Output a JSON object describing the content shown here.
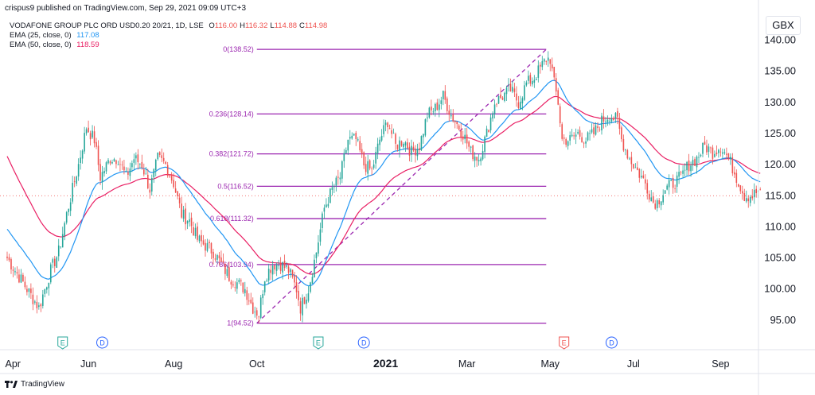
{
  "header": {
    "attribution": "crispus9 published on TradingView.com, Sep 29, 2021 09:09 UTC+3"
  },
  "legend": {
    "symbol": "VODAFONE GROUP PLC ORD USD0.20 20/21, 1D, LSE",
    "ohlc": [
      {
        "label": "O",
        "value": "116.00"
      },
      {
        "label": "H",
        "value": "116.32"
      },
      {
        "label": "L",
        "value": "114.88"
      },
      {
        "label": "C",
        "value": "114.98"
      }
    ],
    "ema25_label": "EMA (25, close, 0)",
    "ema25_value": "117.08",
    "ema50_label": "EMA (50, close, 0)",
    "ema50_value": "118.59"
  },
  "currency": "GBX",
  "footer": {
    "brand": "TradingView"
  },
  "colors": {
    "up": "#26a69a",
    "down": "#ef5350",
    "ema25": "#2196f3",
    "ema50": "#e91e63",
    "fib": "#9c27b0",
    "events_earnings": "#26a69a",
    "events_dividend": "#2962ff",
    "events_red": "#ef5350"
  },
  "chart_data": {
    "type": "candlestick",
    "ylim": [
      90,
      142
    ],
    "y_ticks": [
      "95.00",
      "100.00",
      "105.00",
      "110.00",
      "115.00",
      "120.00",
      "125.00",
      "130.00",
      "135.00",
      "140.00"
    ],
    "x_ticks": [
      {
        "label": "Apr",
        "d": -1
      },
      {
        "label": "Jun",
        "d": 41
      },
      {
        "label": "Aug",
        "d": 84
      },
      {
        "label": "Oct",
        "d": 126
      },
      {
        "label": "2021",
        "d": 191
      },
      {
        "label": "Mar",
        "d": 232
      },
      {
        "label": "May",
        "d": 274
      },
      {
        "label": "Jul",
        "d": 316
      },
      {
        "label": "Sep",
        "d": 360
      }
    ],
    "last_price": 114.98,
    "fibonacci": {
      "start_d": 126,
      "end_d": 272,
      "levels": [
        {
          "label": "0(138.52)",
          "price": 138.52
        },
        {
          "label": "0.236(128.14)",
          "price": 128.14
        },
        {
          "label": "0.382(121.72)",
          "price": 121.72
        },
        {
          "label": "0.5(116.52)",
          "price": 116.52
        },
        {
          "label": "0.618(111.32)",
          "price": 111.32
        },
        {
          "label": "0.786(103.94)",
          "price": 103.94
        },
        {
          "label": "1(94.52)",
          "price": 94.52
        }
      ],
      "trend_from": {
        "d": 126,
        "price": 94.52
      },
      "trend_to": {
        "d": 272,
        "price": 138.52
      }
    },
    "events": [
      {
        "type": "E",
        "d": 28,
        "color": "earnings"
      },
      {
        "type": "D",
        "d": 48,
        "color": "dividend"
      },
      {
        "type": "E",
        "d": 157,
        "color": "earnings"
      },
      {
        "type": "D",
        "d": 180,
        "color": "dividend"
      },
      {
        "type": "E",
        "d": 281,
        "color": "red"
      },
      {
        "type": "D",
        "d": 305,
        "color": "dividend"
      }
    ],
    "close_anchors": [
      [
        0,
        105
      ],
      [
        6,
        102
      ],
      [
        12,
        99
      ],
      [
        16,
        97
      ],
      [
        22,
        103
      ],
      [
        26,
        106
      ],
      [
        30,
        112
      ],
      [
        36,
        120
      ],
      [
        40,
        126
      ],
      [
        44,
        124
      ],
      [
        47,
        118
      ],
      [
        52,
        121
      ],
      [
        56,
        121
      ],
      [
        60,
        118
      ],
      [
        64,
        121
      ],
      [
        68,
        120
      ],
      [
        72,
        116
      ],
      [
        76,
        121
      ],
      [
        80,
        120
      ],
      [
        84,
        117
      ],
      [
        88,
        112
      ],
      [
        92,
        111
      ],
      [
        96,
        108
      ],
      [
        100,
        107
      ],
      [
        104,
        106
      ],
      [
        108,
        104
      ],
      [
        112,
        102
      ],
      [
        116,
        101
      ],
      [
        120,
        100
      ],
      [
        124,
        97
      ],
      [
        127,
        96
      ],
      [
        130,
        102
      ],
      [
        134,
        104
      ],
      [
        138,
        104
      ],
      [
        142,
        103
      ],
      [
        146,
        100
      ],
      [
        148,
        97
      ],
      [
        152,
        100
      ],
      [
        156,
        106
      ],
      [
        160,
        113
      ],
      [
        164,
        116
      ],
      [
        168,
        118
      ],
      [
        172,
        124
      ],
      [
        176,
        124
      ],
      [
        180,
        120
      ],
      [
        184,
        119
      ],
      [
        188,
        124
      ],
      [
        192,
        127
      ],
      [
        196,
        123
      ],
      [
        200,
        124
      ],
      [
        204,
        122
      ],
      [
        208,
        123
      ],
      [
        212,
        128
      ],
      [
        216,
        129
      ],
      [
        220,
        131
      ],
      [
        224,
        128
      ],
      [
        226,
        127
      ],
      [
        230,
        125
      ],
      [
        234,
        122
      ],
      [
        238,
        121
      ],
      [
        242,
        125
      ],
      [
        246,
        130
      ],
      [
        250,
        131
      ],
      [
        254,
        132
      ],
      [
        258,
        130
      ],
      [
        262,
        133
      ],
      [
        266,
        134
      ],
      [
        270,
        136
      ],
      [
        272,
        137
      ],
      [
        274,
        137
      ],
      [
        276,
        133
      ],
      [
        278,
        130
      ],
      [
        280,
        124
      ],
      [
        284,
        124
      ],
      [
        288,
        125
      ],
      [
        292,
        124
      ],
      [
        296,
        125
      ],
      [
        300,
        127
      ],
      [
        304,
        128
      ],
      [
        308,
        127
      ],
      [
        310,
        124
      ],
      [
        314,
        121
      ],
      [
        318,
        119
      ],
      [
        322,
        117
      ],
      [
        326,
        114
      ],
      [
        328,
        114
      ],
      [
        332,
        116
      ],
      [
        336,
        117
      ],
      [
        340,
        118
      ],
      [
        344,
        120
      ],
      [
        348,
        121
      ],
      [
        352,
        123
      ],
      [
        356,
        122
      ],
      [
        360,
        123
      ],
      [
        364,
        121
      ],
      [
        368,
        118
      ],
      [
        372,
        115
      ],
      [
        376,
        115
      ],
      [
        380,
        116
      ]
    ]
  }
}
